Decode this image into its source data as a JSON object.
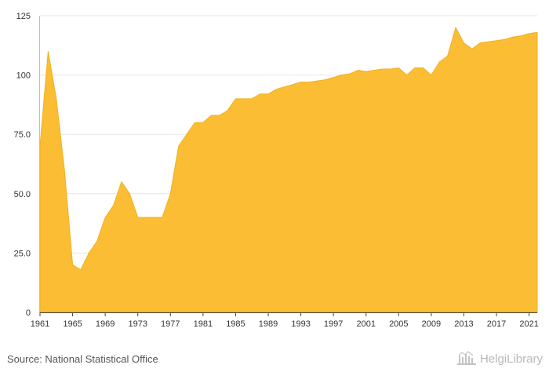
{
  "chart_data": {
    "type": "area",
    "title": "",
    "xlabel": "",
    "ylabel": "",
    "x": [
      1961,
      1962,
      1963,
      1964,
      1965,
      1966,
      1967,
      1968,
      1969,
      1970,
      1971,
      1972,
      1973,
      1974,
      1975,
      1976,
      1977,
      1978,
      1979,
      1980,
      1981,
      1982,
      1983,
      1984,
      1985,
      1986,
      1987,
      1988,
      1989,
      1990,
      1991,
      1992,
      1993,
      1994,
      1995,
      1996,
      1997,
      1998,
      1999,
      2000,
      2001,
      2002,
      2003,
      2004,
      2005,
      2006,
      2007,
      2008,
      2009,
      2010,
      2011,
      2012,
      2013,
      2014,
      2015,
      2016,
      2017,
      2018,
      2019,
      2020,
      2021,
      2022
    ],
    "values": [
      70,
      110,
      90,
      60,
      20,
      18,
      25,
      30,
      40,
      45,
      55,
      50,
      40,
      40,
      40,
      40,
      50,
      70,
      75,
      80,
      80,
      83,
      83,
      85,
      90,
      90,
      90,
      92,
      92,
      94,
      95,
      96,
      97,
      97,
      97.5,
      98,
      99,
      100,
      100.5,
      102,
      101.5,
      102,
      102.5,
      102.5,
      103,
      100,
      103,
      103,
      100,
      105.5,
      108,
      120,
      113.5,
      111,
      113.5,
      114,
      114.5,
      115,
      116,
      116.5,
      117.5,
      118
    ],
    "ylim": [
      0,
      125
    ],
    "xlim": [
      1961,
      2022
    ],
    "y_ticks": [
      0,
      25,
      50,
      75,
      100,
      125
    ],
    "y_tick_labels": [
      "0",
      "25.0",
      "50.0",
      "75.0",
      "100",
      "125"
    ],
    "x_ticks": [
      1961,
      1965,
      1969,
      1973,
      1977,
      1981,
      1985,
      1989,
      1993,
      1997,
      2001,
      2005,
      2009,
      2013,
      2017,
      2021
    ],
    "x_tick_labels": [
      "1961",
      "1965",
      "1969",
      "1973",
      "1977",
      "1981",
      "1985",
      "1989",
      "1993",
      "1997",
      "2001",
      "2005",
      "2009",
      "2013",
      "2017",
      "2021"
    ],
    "grid": "horizontal",
    "legend": "none",
    "colors": {
      "fill": "#fbbd33",
      "stroke": "#f2b01e",
      "grid": "#e6e6e6",
      "axis": "#333333",
      "tick_text": "#333333"
    }
  },
  "footer": {
    "source": "Source: National Statistical Office",
    "brand": "HelgiLibrary"
  },
  "icons": {
    "brand_icon": "library-logo-icon"
  }
}
